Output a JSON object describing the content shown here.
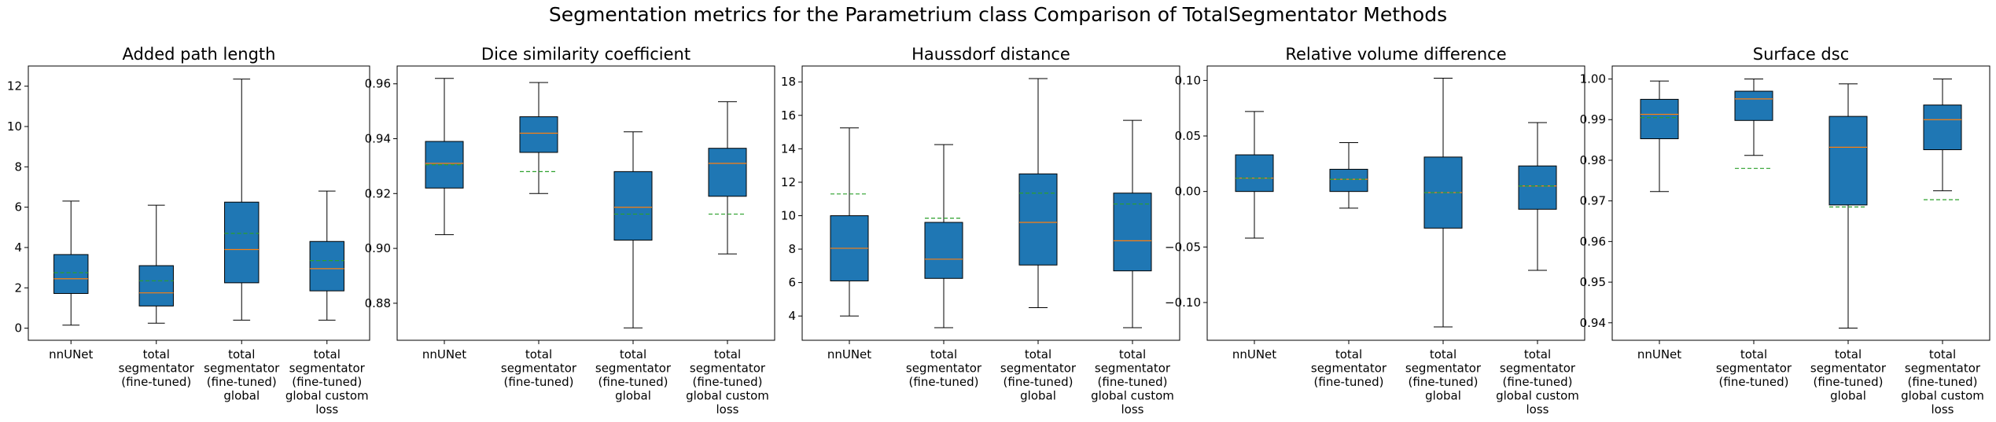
{
  "suptitle": "Segmentation metrics for the Parametrium class Comparison of TotalSegmentator Methods",
  "colors": {
    "box": "#1f77b4",
    "median": "#ff7f0e",
    "mean": "#2ca02c",
    "axis": "#000000"
  },
  "chart_data": [
    {
      "type": "box",
      "title": "Added path length",
      "categories": [
        "nnUNet",
        "total segmentator (fine-tuned)",
        "total segmentator (fine-tuned) global",
        "total segmentator (fine-tuned) global custom loss"
      ],
      "category_lines": [
        [
          "nnUNet"
        ],
        [
          "total",
          "segmentator",
          "(fine-tuned)"
        ],
        [
          "total",
          "segmentator",
          "(fine-tuned)",
          "global"
        ],
        [
          "total",
          "segmentator",
          "(fine-tuned)",
          "global custom",
          "loss"
        ]
      ],
      "ylim": [
        -0.6,
        13.0
      ],
      "yticks": [
        0,
        2,
        4,
        6,
        8,
        10,
        12
      ],
      "ytick_labels": [
        "0",
        "2",
        "4",
        "6",
        "8",
        "10",
        "12"
      ],
      "boxes": [
        {
          "whislo": 0.15,
          "q1": 1.72,
          "med": 2.45,
          "q3": 3.65,
          "whishi": 6.3,
          "mean": 2.75
        },
        {
          "whislo": 0.25,
          "q1": 1.1,
          "med": 1.75,
          "q3": 3.1,
          "whishi": 6.1,
          "mean": 2.35
        },
        {
          "whislo": 0.4,
          "q1": 2.25,
          "med": 3.9,
          "q3": 6.25,
          "whishi": 12.35,
          "mean": 4.7
        },
        {
          "whislo": 0.4,
          "q1": 1.85,
          "med": 2.95,
          "q3": 4.3,
          "whishi": 6.8,
          "mean": 3.35
        }
      ]
    },
    {
      "type": "box",
      "title": "Dice similarity coefficient",
      "categories": [
        "nnUNet",
        "total segmentator (fine-tuned)",
        "total segmentator (fine-tuned) global",
        "total segmentator (fine-tuned) global custom loss"
      ],
      "category_lines": [
        [
          "nnUNet"
        ],
        [
          "total",
          "segmentator",
          "(fine-tuned)"
        ],
        [
          "total",
          "segmentator",
          "(fine-tuned)",
          "global"
        ],
        [
          "total",
          "segmentator",
          "(fine-tuned)",
          "global custom",
          "loss"
        ]
      ],
      "ylim": [
        0.8665,
        0.9665
      ],
      "yticks": [
        0.88,
        0.9,
        0.92,
        0.94,
        0.96
      ],
      "ytick_labels": [
        "0.88",
        "0.90",
        "0.92",
        "0.94",
        "0.96"
      ],
      "boxes": [
        {
          "whislo": 0.905,
          "q1": 0.922,
          "med": 0.931,
          "q3": 0.939,
          "whishi": 0.962,
          "mean": 0.9305
        },
        {
          "whislo": 0.92,
          "q1": 0.935,
          "med": 0.942,
          "q3": 0.948,
          "whishi": 0.9605,
          "mean": 0.928
        },
        {
          "whislo": 0.871,
          "q1": 0.903,
          "med": 0.915,
          "q3": 0.928,
          "whishi": 0.9425,
          "mean": 0.9125
        },
        {
          "whislo": 0.898,
          "q1": 0.919,
          "med": 0.931,
          "q3": 0.9365,
          "whishi": 0.9535,
          "mean": 0.9125
        }
      ]
    },
    {
      "type": "box",
      "title": "Haussdorf distance",
      "categories": [
        "nnUNet",
        "total segmentator (fine-tuned)",
        "total segmentator (fine-tuned) global",
        "total segmentator (fine-tuned) global custom loss"
      ],
      "category_lines": [
        [
          "nnUNet"
        ],
        [
          "total",
          "segmentator",
          "(fine-tuned)"
        ],
        [
          "total",
          "segmentator",
          "(fine-tuned)",
          "global"
        ],
        [
          "total",
          "segmentator",
          "(fine-tuned)",
          "global custom",
          "loss"
        ]
      ],
      "ylim": [
        2.55,
        18.95
      ],
      "yticks": [
        4,
        6,
        8,
        10,
        12,
        14,
        16,
        18
      ],
      "ytick_labels": [
        "4",
        "6",
        "8",
        "10",
        "12",
        "14",
        "16",
        "18"
      ],
      "boxes": [
        {
          "whislo": 4.0,
          "q1": 6.1,
          "med": 8.05,
          "q3": 10.0,
          "whishi": 15.25,
          "mean": 11.3
        },
        {
          "whislo": 3.3,
          "q1": 6.25,
          "med": 7.4,
          "q3": 9.6,
          "whishi": 14.25,
          "mean": 9.85
        },
        {
          "whislo": 4.5,
          "q1": 7.05,
          "med": 9.6,
          "q3": 12.5,
          "whishi": 18.2,
          "mean": 11.35
        },
        {
          "whislo": 3.3,
          "q1": 6.7,
          "med": 8.5,
          "q3": 11.35,
          "whishi": 15.7,
          "mean": 10.7
        }
      ]
    },
    {
      "type": "box",
      "title": "Relative volume difference",
      "categories": [
        "nnUNet",
        "total segmentator (fine-tuned)",
        "total segmentator (fine-tuned) global",
        "total segmentator (fine-tuned) global custom loss"
      ],
      "category_lines": [
        [
          "nnUNet"
        ],
        [
          "total",
          "segmentator",
          "(fine-tuned)"
        ],
        [
          "total",
          "segmentator",
          "(fine-tuned)",
          "global"
        ],
        [
          "total",
          "segmentator",
          "(fine-tuned)",
          "global custom",
          "loss"
        ]
      ],
      "ylim": [
        -0.134,
        0.113
      ],
      "yticks": [
        -0.1,
        -0.05,
        0.0,
        0.05,
        0.1
      ],
      "ytick_labels": [
        "−0.10",
        "−0.05",
        "0.00",
        "0.05",
        "0.10"
      ],
      "boxes": [
        {
          "whislo": -0.042,
          "q1": 0.0,
          "med": 0.012,
          "q3": 0.033,
          "whishi": 0.072,
          "mean": 0.012
        },
        {
          "whislo": -0.015,
          "q1": 0.0,
          "med": 0.011,
          "q3": 0.02,
          "whishi": 0.044,
          "mean": 0.011
        },
        {
          "whislo": -0.122,
          "q1": -0.033,
          "med": -0.001,
          "q3": 0.031,
          "whishi": 0.102,
          "mean": -0.001
        },
        {
          "whislo": -0.071,
          "q1": -0.016,
          "med": 0.005,
          "q3": 0.023,
          "whishi": 0.062,
          "mean": 0.005
        }
      ]
    },
    {
      "type": "box",
      "title": "Surface dsc",
      "categories": [
        "nnUNet",
        "total segmentator (fine-tuned)",
        "total segmentator (fine-tuned) global",
        "total segmentator (fine-tuned) global custom loss"
      ],
      "category_lines": [
        [
          "nnUNet"
        ],
        [
          "total",
          "segmentator",
          "(fine-tuned)"
        ],
        [
          "total",
          "segmentator",
          "(fine-tuned)",
          "global"
        ],
        [
          "total",
          "segmentator",
          "(fine-tuned)",
          "global custom",
          "loss"
        ]
      ],
      "ylim": [
        0.9357,
        1.0032
      ],
      "yticks": [
        0.94,
        0.95,
        0.96,
        0.97,
        0.98,
        0.99,
        1.0
      ],
      "ytick_labels": [
        "0.94",
        "0.95",
        "0.96",
        "0.97",
        "0.98",
        "0.99",
        "1.00"
      ],
      "boxes": [
        {
          "whislo": 0.9723,
          "q1": 0.9853,
          "med": 0.9913,
          "q3": 0.995,
          "whishi": 0.9995,
          "mean": 0.9905
        },
        {
          "whislo": 0.9812,
          "q1": 0.9898,
          "med": 0.9951,
          "q3": 0.997,
          "whishi": 1.0,
          "mean": 0.978
        },
        {
          "whislo": 0.9387,
          "q1": 0.969,
          "med": 0.9832,
          "q3": 0.9908,
          "whishi": 0.9988,
          "mean": 0.9685
        },
        {
          "whislo": 0.9725,
          "q1": 0.9826,
          "med": 0.99,
          "q3": 0.9936,
          "whishi": 1.0,
          "mean": 0.9703
        }
      ]
    }
  ]
}
